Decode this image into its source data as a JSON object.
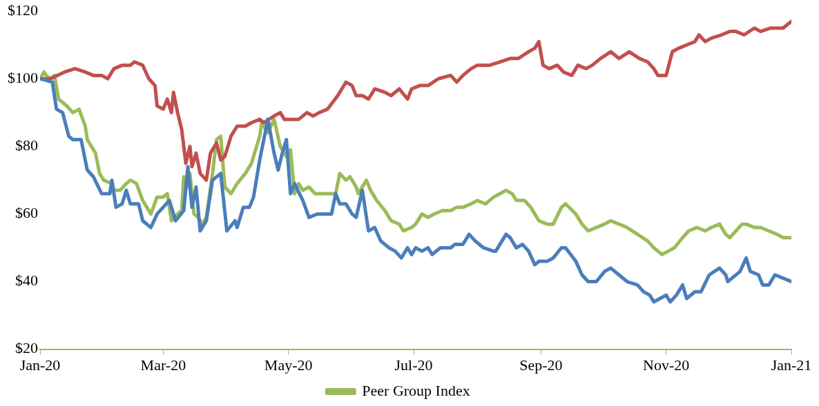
{
  "chart_data": {
    "type": "line",
    "xlim": [
      "2020-01-01",
      "2021-01-01"
    ],
    "xticks": [
      {
        "value": "2020-01-01",
        "label": "Jan-20"
      },
      {
        "value": "2020-03-01",
        "label": "Mar-20"
      },
      {
        "value": "2020-05-01",
        "label": "May-20"
      },
      {
        "value": "2020-07-01",
        "label": "Jul-20"
      },
      {
        "value": "2020-09-01",
        "label": "Sep-20"
      },
      {
        "value": "2020-11-01",
        "label": "Nov-20"
      },
      {
        "value": "2021-01-01",
        "label": "Jan-21"
      }
    ],
    "ylim": [
      20,
      120
    ],
    "yticks": [
      {
        "value": 20,
        "label": "$20"
      },
      {
        "value": 40,
        "label": "$40"
      },
      {
        "value": 60,
        "label": "$60"
      },
      {
        "value": 80,
        "label": "$80"
      },
      {
        "value": 100,
        "label": "$100"
      },
      {
        "value": 120,
        "label": "$120"
      }
    ],
    "grid": false,
    "legend": "bottom",
    "marker": "none",
    "line_style": "solid",
    "series": [
      {
        "color": "#4a7ebb",
        "x": [
          "2020-01-01",
          "2020-01-07",
          "2020-01-09",
          "2020-01-12",
          "2020-01-15",
          "2020-01-17",
          "2020-01-21",
          "2020-01-24",
          "2020-01-27",
          "2020-01-31",
          "2020-02-04",
          "2020-02-05",
          "2020-02-07",
          "2020-02-10",
          "2020-02-12",
          "2020-02-14",
          "2020-02-18",
          "2020-02-20",
          "2020-02-24",
          "2020-02-27",
          "2020-03-01",
          "2020-03-04",
          "2020-03-07",
          "2020-03-11",
          "2020-03-13",
          "2020-03-15",
          "2020-03-17",
          "2020-03-19",
          "2020-03-22",
          "2020-03-25",
          "2020-03-29",
          "2020-04-01",
          "2020-04-05",
          "2020-04-06",
          "2020-04-09",
          "2020-04-12",
          "2020-04-14",
          "2020-04-17",
          "2020-04-21",
          "2020-04-24",
          "2020-04-26",
          "2020-04-28",
          "2020-04-30",
          "2020-05-02",
          "2020-05-04",
          "2020-05-08",
          "2020-05-11",
          "2020-05-15",
          "2020-05-18",
          "2020-05-22",
          "2020-05-24",
          "2020-05-26",
          "2020-05-29",
          "2020-06-01",
          "2020-06-03",
          "2020-06-06",
          "2020-06-09",
          "2020-06-12",
          "2020-06-15",
          "2020-06-19",
          "2020-06-22",
          "2020-06-25",
          "2020-06-28",
          "2020-06-30",
          "2020-07-02",
          "2020-07-05",
          "2020-07-08",
          "2020-07-10",
          "2020-07-14",
          "2020-07-19",
          "2020-07-21",
          "2020-07-25",
          "2020-07-28",
          "2020-07-31",
          "2020-08-04",
          "2020-08-09",
          "2020-08-10",
          "2020-08-15",
          "2020-08-17",
          "2020-08-20",
          "2020-08-23",
          "2020-08-26",
          "2020-08-29",
          "2020-08-31",
          "2020-09-04",
          "2020-09-07",
          "2020-09-11",
          "2020-09-13",
          "2020-09-18",
          "2020-09-21",
          "2020-09-24",
          "2020-09-28",
          "2020-10-02",
          "2020-10-05",
          "2020-10-09",
          "2020-10-13",
          "2020-10-18",
          "2020-10-21",
          "2020-10-24",
          "2020-10-26",
          "2020-10-29",
          "2020-11-01",
          "2020-11-03",
          "2020-11-06",
          "2020-11-09",
          "2020-11-11",
          "2020-11-15",
          "2020-11-18",
          "2020-11-22",
          "2020-11-27",
          "2020-11-30",
          "2020-12-01",
          "2020-12-03",
          "2020-12-07",
          "2020-12-10",
          "2020-12-12",
          "2020-12-16",
          "2020-12-18",
          "2020-12-21",
          "2020-12-24",
          "2020-12-28",
          "2021-01-01"
        ],
        "values": [
          100,
          99,
          91,
          90,
          83,
          82,
          82,
          73,
          71,
          66,
          66,
          70,
          62,
          63,
          67,
          63,
          63,
          58,
          56,
          60,
          62,
          64,
          58,
          61,
          74,
          62,
          68,
          55,
          58,
          70,
          72,
          55,
          58,
          56,
          62,
          62,
          65,
          76,
          88,
          78,
          73,
          78,
          82,
          66,
          69,
          64,
          59,
          60,
          60,
          60,
          66,
          63,
          63,
          60,
          59,
          67,
          55,
          56,
          52,
          50,
          49,
          47,
          50,
          48,
          50,
          49,
          50,
          48,
          50,
          50,
          51,
          51,
          54,
          52,
          50,
          49,
          49,
          54,
          53,
          50,
          51,
          49,
          45,
          46,
          46,
          47,
          50,
          50,
          46,
          42,
          40,
          40,
          43,
          44,
          42,
          40,
          39,
          37,
          36,
          34,
          35,
          36,
          34,
          36,
          39,
          35,
          37,
          37,
          42,
          44,
          42,
          40,
          41,
          43,
          47,
          43,
          42,
          39,
          39,
          42,
          41,
          40
        ]
      },
      {
        "color": "#c0504d",
        "x": [
          "2020-01-01",
          "2020-01-06",
          "2020-01-13",
          "2020-01-18",
          "2020-01-23",
          "2020-01-27",
          "2020-01-31",
          "2020-02-03",
          "2020-02-06",
          "2020-02-10",
          "2020-02-14",
          "2020-02-16",
          "2020-02-20",
          "2020-02-23",
          "2020-02-26",
          "2020-02-27",
          "2020-03-01",
          "2020-03-03",
          "2020-03-05",
          "2020-03-06",
          "2020-03-08",
          "2020-03-10",
          "2020-03-12",
          "2020-03-14",
          "2020-03-15",
          "2020-03-17",
          "2020-03-19",
          "2020-03-22",
          "2020-03-24",
          "2020-03-27",
          "2020-03-29",
          "2020-03-31",
          "2020-04-03",
          "2020-04-06",
          "2020-04-10",
          "2020-04-13",
          "2020-04-17",
          "2020-04-19",
          "2020-04-24",
          "2020-04-27",
          "2020-04-29",
          "2020-05-03",
          "2020-05-06",
          "2020-05-10",
          "2020-05-13",
          "2020-05-16",
          "2020-05-20",
          "2020-05-25",
          "2020-05-29",
          "2020-06-01",
          "2020-06-03",
          "2020-06-06",
          "2020-06-09",
          "2020-06-12",
          "2020-06-17",
          "2020-06-20",
          "2020-06-24",
          "2020-06-28",
          "2020-06-30",
          "2020-07-04",
          "2020-07-08",
          "2020-07-13",
          "2020-07-19",
          "2020-07-22",
          "2020-07-25",
          "2020-07-29",
          "2020-08-01",
          "2020-08-07",
          "2020-08-12",
          "2020-08-17",
          "2020-08-21",
          "2020-08-26",
          "2020-08-29",
          "2020-08-31",
          "2020-09-02",
          "2020-09-05",
          "2020-09-09",
          "2020-09-12",
          "2020-09-16",
          "2020-09-19",
          "2020-09-23",
          "2020-09-26",
          "2020-09-30",
          "2020-10-05",
          "2020-10-09",
          "2020-10-14",
          "2020-10-19",
          "2020-10-23",
          "2020-10-26",
          "2020-10-28",
          "2020-11-01",
          "2020-11-04",
          "2020-11-07",
          "2020-11-11",
          "2020-11-15",
          "2020-11-17",
          "2020-11-20",
          "2020-11-23",
          "2020-11-28",
          "2020-12-02",
          "2020-12-05",
          "2020-12-09",
          "2020-12-14",
          "2020-12-17",
          "2020-12-22",
          "2020-12-28",
          "2021-01-01"
        ],
        "values": [
          100,
          100,
          102,
          103,
          102,
          101,
          101,
          100,
          103,
          104,
          104,
          105,
          104,
          100,
          98,
          92,
          91,
          94,
          90,
          96,
          90,
          85,
          75,
          80,
          74,
          78,
          72,
          70,
          78,
          81,
          76,
          77,
          83,
          86,
          86,
          87,
          88,
          87,
          89,
          90,
          88,
          88,
          88,
          90,
          89,
          90,
          91,
          95,
          99,
          98,
          95,
          95,
          94,
          97,
          96,
          95,
          97,
          94,
          97,
          98,
          98,
          100,
          101,
          99,
          101,
          103,
          104,
          104,
          105,
          106,
          106,
          108,
          109,
          111,
          104,
          103,
          104,
          102,
          101,
          104,
          103,
          104,
          106,
          108,
          106,
          108,
          106,
          105,
          103,
          101,
          101,
          108,
          109,
          110,
          111,
          113,
          111,
          112,
          113,
          114,
          114,
          113,
          115,
          114,
          115,
          115,
          117
        ]
      },
      {
        "name": "Peer Group Index",
        "color": "#9bbb59",
        "x": [
          "2020-01-01",
          "2020-01-03",
          "2020-01-04",
          "2020-01-06",
          "2020-01-08",
          "2020-01-10",
          "2020-01-14",
          "2020-01-17",
          "2020-01-20",
          "2020-01-23",
          "2020-01-24",
          "2020-01-28",
          "2020-01-30",
          "2020-02-01",
          "2020-02-05",
          "2020-02-06",
          "2020-02-09",
          "2020-02-12",
          "2020-02-14",
          "2020-02-17",
          "2020-02-20",
          "2020-02-24",
          "2020-02-27",
          "2020-03-01",
          "2020-03-03",
          "2020-03-05",
          "2020-03-08",
          "2020-03-10",
          "2020-03-11",
          "2020-03-13",
          "2020-03-14",
          "2020-03-16",
          "2020-03-18",
          "2020-03-20",
          "2020-03-22",
          "2020-03-25",
          "2020-03-27",
          "2020-03-29",
          "2020-03-31",
          "2020-04-03",
          "2020-04-06",
          "2020-04-10",
          "2020-04-13",
          "2020-04-17",
          "2020-04-18",
          "2020-04-21",
          "2020-04-24",
          "2020-04-27",
          "2020-04-30",
          "2020-05-02",
          "2020-05-04",
          "2020-05-06",
          "2020-05-08",
          "2020-05-11",
          "2020-05-14",
          "2020-05-17",
          "2020-05-20",
          "2020-05-24",
          "2020-05-26",
          "2020-05-29",
          "2020-05-31",
          "2020-06-03",
          "2020-06-04",
          "2020-06-08",
          "2020-06-10",
          "2020-06-13",
          "2020-06-17",
          "2020-06-20",
          "2020-06-24",
          "2020-06-26",
          "2020-06-30",
          "2020-07-02",
          "2020-07-05",
          "2020-07-08",
          "2020-07-11",
          "2020-07-15",
          "2020-07-19",
          "2020-07-22",
          "2020-07-25",
          "2020-07-29",
          "2020-08-01",
          "2020-08-05",
          "2020-08-09",
          "2020-08-12",
          "2020-08-15",
          "2020-08-18",
          "2020-08-20",
          "2020-08-24",
          "2020-08-27",
          "2020-08-31",
          "2020-09-04",
          "2020-09-07",
          "2020-09-11",
          "2020-09-13",
          "2020-09-18",
          "2020-09-21",
          "2020-09-24",
          "2020-09-28",
          "2020-10-02",
          "2020-10-05",
          "2020-10-09",
          "2020-10-13",
          "2020-10-18",
          "2020-10-23",
          "2020-10-26",
          "2020-10-30",
          "2020-11-02",
          "2020-11-05",
          "2020-11-09",
          "2020-11-12",
          "2020-11-16",
          "2020-11-20",
          "2020-11-23",
          "2020-11-27",
          "2020-11-30",
          "2020-12-02",
          "2020-12-05",
          "2020-12-08",
          "2020-12-10",
          "2020-12-14",
          "2020-12-17",
          "2020-12-21",
          "2020-12-25",
          "2020-12-28",
          "2021-01-01"
        ],
        "values": [
          100,
          102,
          101,
          100,
          101,
          94,
          92,
          90,
          91,
          86,
          82,
          78,
          72,
          70,
          69,
          67,
          67,
          69,
          70,
          69,
          64,
          60,
          65,
          65,
          66,
          58,
          60,
          61,
          71,
          68,
          72,
          60,
          59,
          57,
          59,
          72,
          82,
          83,
          68,
          66,
          69,
          72,
          75,
          83,
          87,
          84,
          88,
          80,
          77,
          79,
          66,
          69,
          67,
          68,
          66,
          66,
          66,
          66,
          72,
          70,
          71,
          68,
          66,
          70,
          67,
          64,
          61,
          58,
          57,
          55,
          56,
          57,
          60,
          59,
          60,
          61,
          61,
          62,
          62,
          63,
          64,
          63,
          65,
          66,
          67,
          66,
          64,
          64,
          62,
          58,
          57,
          57,
          62,
          63,
          60,
          57,
          55,
          56,
          57,
          58,
          57,
          56,
          54,
          52,
          50,
          48,
          49,
          50,
          53,
          55,
          56,
          55,
          56,
          57,
          54,
          53,
          55,
          57,
          57,
          56,
          56,
          55,
          54,
          53,
          53
        ]
      }
    ]
  }
}
